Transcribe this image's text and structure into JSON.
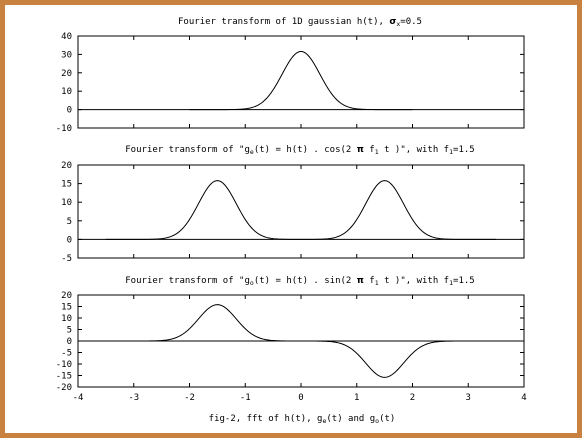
{
  "chart_data": [
    {
      "type": "line",
      "title": "Fourier transform of 1D gaussian h(t), σx=0.5",
      "xlim": [
        -4,
        4
      ],
      "ylim": [
        -10,
        40
      ],
      "yticks": [
        -10,
        0,
        10,
        20,
        30,
        40
      ],
      "grid": false,
      "series": [
        {
          "x": [
            -2.0,
            -1.5,
            -1.0,
            -0.75,
            -0.5,
            -0.25,
            0.0,
            0.25,
            0.5,
            0.75,
            1.0,
            1.5,
            2.0
          ],
          "values": [
            0.0,
            0.1,
            1.4,
            4.8,
            11.8,
            21.9,
            31.6,
            21.9,
            11.8,
            4.8,
            1.4,
            0.1,
            0.0
          ]
        }
      ]
    },
    {
      "type": "line",
      "title": "Fourier transform of \"ge(t) = h(t) . cos(2 π f1 t )\", with f1=1.5",
      "xlim": [
        -4,
        4
      ],
      "ylim": [
        -5,
        20
      ],
      "yticks": [
        -5,
        0,
        5,
        10,
        15,
        20
      ],
      "grid": false,
      "series": [
        {
          "x": [
            -3.5,
            -3.0,
            -2.5,
            -2.25,
            -2.0,
            -1.75,
            -1.5,
            -1.25,
            -1.0,
            -0.75,
            -0.5,
            0.0,
            0.5,
            0.75,
            1.0,
            1.25,
            1.5,
            1.75,
            2.0,
            2.25,
            2.5,
            3.0,
            3.5
          ],
          "values": [
            0.0,
            0.1,
            0.7,
            2.4,
            5.9,
            10.9,
            15.8,
            10.9,
            5.9,
            2.4,
            0.7,
            0.0,
            0.7,
            2.4,
            5.9,
            10.9,
            15.8,
            10.9,
            5.9,
            2.4,
            0.7,
            0.1,
            0.0
          ]
        }
      ]
    },
    {
      "type": "line",
      "title": "Fourier transform of \"go(t) = h(t) . sin(2 π f1 t )\", with f1=1.5",
      "xlabel": "fig-2, fft of h(t), ge(t) and go(t)",
      "xlim": [
        -4,
        4
      ],
      "ylim": [
        -20,
        20
      ],
      "xticks": [
        -4,
        -3,
        -2,
        -1,
        0,
        1,
        2,
        3,
        4
      ],
      "yticks": [
        -20,
        -15,
        -10,
        -5,
        0,
        5,
        10,
        15,
        20
      ],
      "grid": false,
      "series": [
        {
          "x": [
            -3.5,
            -3.0,
            -2.5,
            -2.25,
            -2.0,
            -1.75,
            -1.5,
            -1.25,
            -1.0,
            -0.75,
            -0.5,
            0.0,
            0.5,
            0.75,
            1.0,
            1.25,
            1.5,
            1.75,
            2.0,
            2.25,
            2.5,
            3.0,
            3.5
          ],
          "values": [
            0.0,
            0.1,
            0.7,
            2.4,
            5.9,
            10.9,
            15.8,
            10.9,
            5.9,
            2.4,
            0.7,
            0.0,
            -0.7,
            -2.4,
            -5.9,
            -10.9,
            -15.8,
            -10.9,
            -5.9,
            -2.4,
            -0.7,
            -0.1,
            0.0
          ]
        }
      ]
    }
  ],
  "labels": {
    "title1": {
      "pre": "Fourier transform of 1D gaussian h(t), ",
      "sigma": "σ",
      "sigma_sub": "x",
      "post": "=0.5"
    },
    "title2": {
      "pre": "Fourier transform of \"g",
      "g_sub": "e",
      "mid1": "(t) = h(t) . cos(2 ",
      "pi": "π",
      "mid2": " f",
      "f_sub": "1",
      "mid3": " t )\", with f",
      "f2_sub": "1",
      "post": "=1.5"
    },
    "title3": {
      "pre": "Fourier transform of \"g",
      "g_sub": "o",
      "mid1": "(t) = h(t) . sin(2 ",
      "pi": "π",
      "mid2": " f",
      "f_sub": "1",
      "mid3": " t )\", with f",
      "f2_sub": "1",
      "post": "=1.5"
    },
    "xlabel": {
      "pre": "fig-2, fft of h(t), g",
      "sub1": "e",
      "mid": "(t) and g",
      "sub2": "o",
      "post": "(t)"
    }
  },
  "colors": {
    "frame": "#c8813f",
    "line": "#000000",
    "background": "#ffffff"
  }
}
